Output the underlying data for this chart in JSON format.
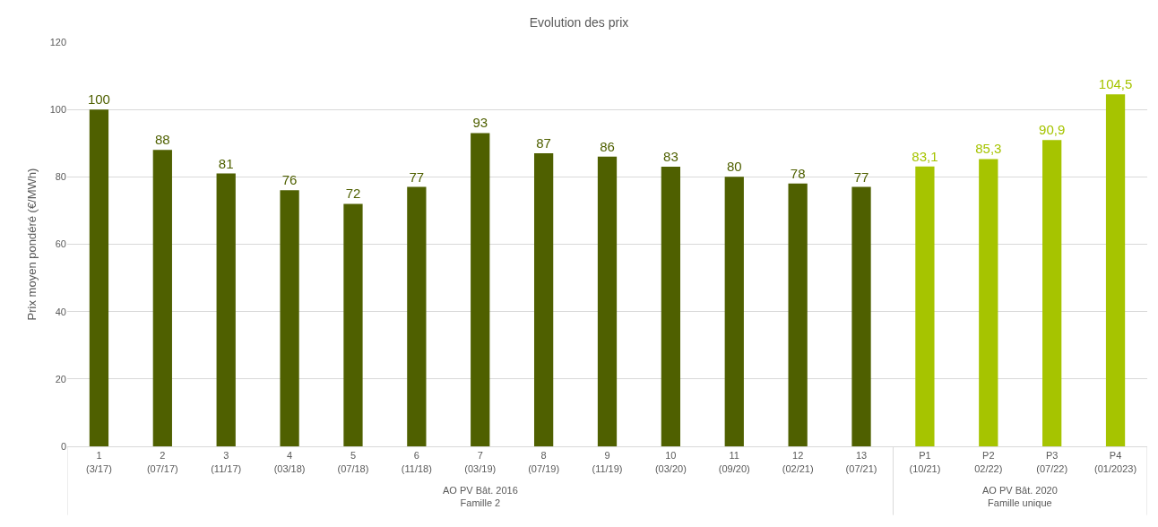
{
  "chart_data": {
    "type": "bar",
    "title": "Evolution des prix",
    "ylabel": "Prix moyen pondéré (€/MWh)",
    "categories": [
      "1\n(3/17)",
      "2\n(07/17)",
      "3\n(11/17)",
      "4\n(03/18)",
      "5\n(07/18)",
      "6\n(11/18)",
      "7\n(03/19)",
      "8\n(07/19)",
      "9\n(11/19)",
      "10\n(03/20)",
      "11\n(09/20)",
      "12\n(02/21)",
      "13\n(07/21)",
      "P1\n(10/21)",
      "P2\n02/22)",
      "P3\n(07/22)",
      "P4\n(01/2023)"
    ],
    "values": [
      100,
      88,
      81,
      76,
      72,
      77,
      93,
      87,
      86,
      83,
      80,
      78,
      77,
      83.1,
      85.3,
      90.9,
      104.5
    ],
    "value_labels": [
      "100",
      "88",
      "81",
      "76",
      "72",
      "77",
      "93",
      "87",
      "86",
      "83",
      "80",
      "78",
      "77",
      "83,1",
      "85,3",
      "90,9",
      "104,5"
    ],
    "colors": [
      "#4f6000",
      "#4f6000",
      "#4f6000",
      "#4f6000",
      "#4f6000",
      "#4f6000",
      "#4f6000",
      "#4f6000",
      "#4f6000",
      "#4f6000",
      "#4f6000",
      "#4f6000",
      "#4f6000",
      "#a6c400",
      "#a6c400",
      "#a6c400",
      "#a6c400"
    ],
    "ylim": [
      0,
      120
    ],
    "yticks": [
      0,
      20,
      40,
      60,
      80,
      100,
      120
    ],
    "grid": "y",
    "annotations": [
      "AO PV Bât. 2016\nFamille 2",
      "AO PV Bât. 2020\nFamille unique"
    ]
  }
}
